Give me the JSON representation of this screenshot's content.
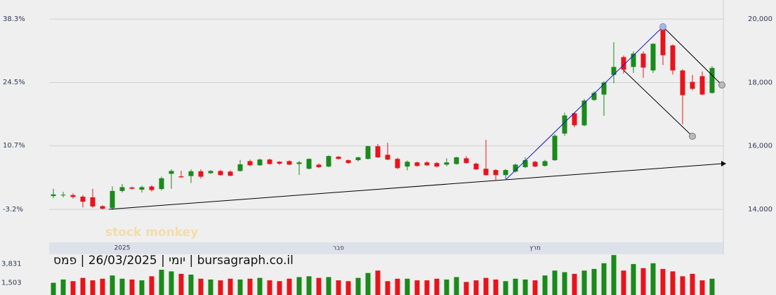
{
  "chart_data": [
    {
      "type": "candlestick",
      "title": "יומי | 26/03/2025 | פמס | bursagraph.co.il",
      "watermark": "stock monkey",
      "categories": [
        null,
        null,
        null,
        null,
        null,
        null,
        null,
        "2025",
        null,
        null,
        null,
        null,
        null,
        null,
        null,
        null,
        null,
        null,
        null,
        null,
        null,
        null,
        null,
        null,
        null,
        null,
        null,
        null,
        null,
        "פבר",
        null,
        null,
        null,
        null,
        null,
        null,
        null,
        null,
        null,
        null,
        null,
        null,
        null,
        null,
        null,
        null,
        null,
        null,
        null,
        "מרץ",
        null,
        null,
        null,
        null,
        null,
        null,
        null,
        null,
        null,
        null,
        null,
        null,
        null,
        null,
        null,
        null,
        null,
        null
      ],
      "open": [
        14420,
        14450,
        14450,
        14400,
        14380,
        14100,
        14040,
        14580,
        14690,
        14620,
        14720,
        14640,
        15120,
        15040,
        15050,
        15200,
        15140,
        15210,
        15190,
        15210,
        15520,
        15390,
        15570,
        15500,
        15520,
        15430,
        15280,
        15410,
        15350,
        15660,
        15550,
        15550,
        15590,
        15990,
        15720,
        15590,
        15350,
        15480,
        15480,
        15460,
        15410,
        15430,
        15610,
        15440,
        15280,
        15240,
        15080,
        15190,
        15330,
        15500,
        15370,
        15550,
        16390,
        17030,
        16650,
        17450,
        17620,
        18240,
        18800,
        18490,
        18910,
        18380,
        19700,
        19170,
        18380,
        18020,
        18200,
        17670
      ],
      "high": [
        14650,
        14550,
        14500,
        14450,
        14650,
        14130,
        14720,
        14800,
        14720,
        14740,
        14760,
        15030,
        15260,
        15220,
        15260,
        15260,
        15240,
        15240,
        15230,
        15560,
        15570,
        15600,
        15600,
        15520,
        15550,
        15530,
        15610,
        15450,
        15700,
        15680,
        15570,
        15660,
        16010,
        16060,
        16100,
        15630,
        15540,
        15510,
        15520,
        15490,
        15610,
        15660,
        15680,
        15470,
        16190,
        15270,
        15270,
        15440,
        15640,
        15530,
        15560,
        16370,
        17050,
        17070,
        17480,
        17720,
        18040,
        19270,
        18850,
        18980,
        18980,
        19240,
        19760,
        19200,
        18420,
        18240,
        18350,
        18510
      ],
      "low": [
        14350,
        14380,
        14340,
        14060,
        14050,
        13990,
        13980,
        14530,
        14620,
        14530,
        14560,
        14600,
        14650,
        15000,
        14830,
        14970,
        15120,
        15060,
        15040,
        15190,
        15360,
        15370,
        15410,
        15400,
        15390,
        15080,
        15260,
        15300,
        15330,
        15570,
        15440,
        15510,
        15570,
        15620,
        15550,
        15270,
        15230,
        15340,
        15360,
        15320,
        15360,
        15410,
        15440,
        15240,
        15060,
        14920,
        14960,
        15160,
        15300,
        15330,
        15350,
        15530,
        16320,
        16590,
        16620,
        17420,
        16950,
        17980,
        18280,
        18300,
        18150,
        18300,
        18550,
        18250,
        16680,
        17750,
        17600,
        17650
      ],
      "close": [
        14470,
        14460,
        14390,
        14240,
        14090,
        14020,
        14580,
        14700,
        14650,
        14700,
        14610,
        14980,
        15210,
        15010,
        15200,
        15030,
        15210,
        15080,
        15060,
        15420,
        15390,
        15570,
        15430,
        15440,
        15410,
        15480,
        15590,
        15330,
        15680,
        15590,
        15460,
        15640,
        15990,
        15640,
        15570,
        15300,
        15500,
        15370,
        15390,
        15350,
        15480,
        15640,
        15460,
        15260,
        15080,
        15080,
        15240,
        15410,
        15550,
        15350,
        15520,
        16320,
        16960,
        16650,
        17430,
        17670,
        18000,
        18490,
        18400,
        18910,
        18470,
        19220,
        18860,
        18380,
        17600,
        17800,
        17620,
        18460
      ],
      "up_color": "#1a8a1a",
      "down_color": "#e8141c",
      "ylim": [
        12960,
        20380
      ],
      "yticks": [
        {
          "value": 14000,
          "label": "14,000"
        },
        {
          "value": 16000,
          "label": "16,000"
        },
        {
          "value": 18000,
          "label": "18,000"
        },
        {
          "value": 20000,
          "label": "20,000"
        }
      ],
      "y2lim": [
        -10.4,
        40.9
      ],
      "y2ticks": [
        {
          "value": -3.2,
          "label": "-3.2%"
        },
        {
          "value": 10.7,
          "label": "10.7%"
        },
        {
          "value": 24.5,
          "label": "24.5%"
        },
        {
          "value": 38.3,
          "label": "38.3%"
        }
      ],
      "grid": true
    },
    {
      "type": "bar",
      "name": "volume",
      "values": [
        1500,
        1900,
        1700,
        2100,
        1800,
        2000,
        2400,
        2000,
        1900,
        1800,
        2300,
        3100,
        2900,
        2600,
        2500,
        2000,
        1900,
        1800,
        2000,
        1900,
        2000,
        2100,
        1800,
        1700,
        2000,
        2200,
        2300,
        2100,
        2200,
        1800,
        1700,
        2100,
        2700,
        3000,
        1700,
        2000,
        2000,
        1800,
        1800,
        2000,
        1900,
        2200,
        1600,
        1800,
        2100,
        1900,
        1700,
        2000,
        1900,
        1800,
        2400,
        3000,
        2800,
        2600,
        3000,
        3200,
        3900,
        4900,
        3000,
        3800,
        3300,
        3900,
        3200,
        2900,
        2300,
        2600,
        1800,
        2000
      ],
      "ylim": [
        0,
        5000
      ],
      "yticks": [
        {
          "value": 3831,
          "label": "3,831"
        },
        {
          "value": 1503,
          "label": "1,503"
        }
      ]
    }
  ]
}
